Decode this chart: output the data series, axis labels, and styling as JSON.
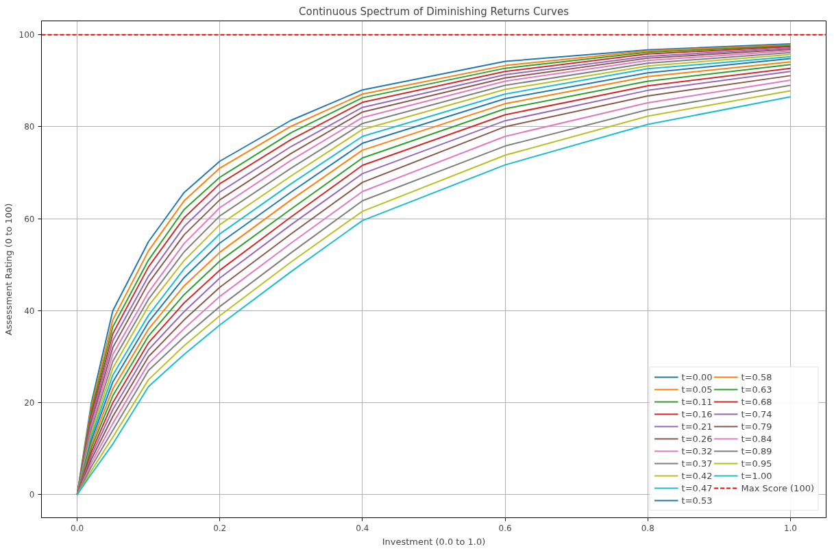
{
  "chart_data": {
    "type": "line",
    "title": "Continuous Spectrum of Diminishing Returns Curves",
    "xlabel": "Investment (0.0 to 1.0)",
    "ylabel": "Assessment Rating (0 to 100)",
    "x": [
      0,
      0.02,
      0.05,
      0.1,
      0.15,
      0.2,
      0.3,
      0.4,
      0.6,
      0.8,
      1.0
    ],
    "series": [
      {
        "name": "t=0.00",
        "color": "#1f77b4",
        "values": [
          0,
          20,
          40,
          55,
          65.7,
          72.5,
          81.4,
          88.0,
          94.2,
          96.7,
          98.0
        ]
      },
      {
        "name": "t=0.05",
        "color": "#ff7f0e",
        "values": [
          0,
          19.2,
          38,
          53,
          63.9,
          71.0,
          80.1,
          87.1,
          93.3,
          96.5,
          97.8
        ]
      },
      {
        "name": "t=0.11",
        "color": "#2ca02c",
        "values": [
          0,
          18.4,
          36.5,
          51,
          62.0,
          69.0,
          78.7,
          86.3,
          92.7,
          96.2,
          97.6
        ]
      },
      {
        "name": "t=0.16",
        "color": "#d62728",
        "values": [
          0,
          17.5,
          35,
          49.5,
          60.2,
          67.6,
          77.2,
          85.3,
          92.0,
          95.8,
          97.4
        ]
      },
      {
        "name": "t=0.21",
        "color": "#9467bd",
        "values": [
          0,
          16.7,
          33.5,
          47.5,
          58.3,
          65.8,
          75.7,
          84.2,
          91.3,
          95.3,
          97.1
        ]
      },
      {
        "name": "t=0.26",
        "color": "#8c564b",
        "values": [
          0,
          15.9,
          32,
          46,
          56.5,
          64.1,
          74.2,
          83.2,
          90.6,
          94.9,
          96.8
        ]
      },
      {
        "name": "t=0.32",
        "color": "#e377c2",
        "values": [
          0,
          15.1,
          30.5,
          44,
          54.6,
          62.4,
          72.7,
          82.0,
          89.9,
          94.4,
          96.5
        ]
      },
      {
        "name": "t=0.37",
        "color": "#7f7f7f",
        "values": [
          0,
          14.3,
          29,
          42.5,
          52.8,
          60.6,
          71.0,
          80.7,
          89.0,
          93.8,
          96.1
        ]
      },
      {
        "name": "t=0.42",
        "color": "#bcbd22",
        "values": [
          0,
          13.4,
          27.5,
          41,
          50.9,
          58.7,
          69.3,
          79.4,
          88.1,
          93.2,
          95.7
        ]
      },
      {
        "name": "t=0.47",
        "color": "#17becf",
        "values": [
          0,
          12.6,
          26,
          39,
          49.1,
          56.7,
          67.6,
          77.9,
          87.1,
          92.6,
          95.2
        ]
      },
      {
        "name": "t=0.53",
        "color": "#1f77b4",
        "values": [
          0,
          11.8,
          24.5,
          37.5,
          47.2,
          54.7,
          65.8,
          76.4,
          86.1,
          91.7,
          94.8
        ]
      },
      {
        "name": "t=0.58",
        "color": "#ff7f0e",
        "values": [
          0,
          11.0,
          23,
          36,
          45.4,
          52.7,
          64.1,
          74.9,
          85.0,
          90.9,
          94.1
        ]
      },
      {
        "name": "t=0.63",
        "color": "#2ca02c",
        "values": [
          0,
          10.2,
          21.5,
          34.5,
          43.5,
          50.8,
          62.1,
          73.2,
          83.9,
          89.9,
          93.5
        ]
      },
      {
        "name": "t=0.68",
        "color": "#d62728",
        "values": [
          0,
          9.3,
          20,
          33,
          41.7,
          48.8,
          60.4,
          71.6,
          82.6,
          88.9,
          92.7
        ]
      },
      {
        "name": "t=0.74",
        "color": "#9467bd",
        "values": [
          0,
          8.5,
          18.5,
          31.5,
          39.8,
          47.1,
          58.7,
          69.8,
          81.3,
          87.9,
          92.0
        ]
      },
      {
        "name": "t=0.79",
        "color": "#8c564b",
        "values": [
          0,
          7.7,
          17,
          30,
          38.0,
          45.1,
          56.7,
          67.9,
          80.0,
          86.7,
          91.1
        ]
      },
      {
        "name": "t=0.84",
        "color": "#e377c2",
        "values": [
          0,
          6.9,
          15.5,
          28.5,
          36.1,
          43.1,
          54.7,
          65.9,
          77.9,
          85.2,
          90.1
        ]
      },
      {
        "name": "t=0.89",
        "color": "#7f7f7f",
        "values": [
          0,
          6.1,
          14,
          27,
          34.3,
          40.9,
          52.6,
          63.9,
          75.8,
          83.7,
          89.0
        ]
      },
      {
        "name": "t=0.95",
        "color": "#bcbd22",
        "values": [
          0,
          5.2,
          12.5,
          25,
          32.4,
          38.9,
          50.6,
          61.6,
          73.8,
          82.3,
          87.8
        ]
      },
      {
        "name": "t=1.00",
        "color": "#17becf",
        "values": [
          0,
          4.5,
          11,
          23.5,
          30.5,
          36.9,
          48.5,
          59.6,
          71.7,
          80.5,
          86.5
        ]
      }
    ],
    "ref_lines": [
      {
        "axis": "y",
        "value": 100,
        "label": "Max Score (100)",
        "color": "#ff0000",
        "line_style": "dashed"
      }
    ],
    "xlim": [
      -0.05,
      1.05
    ],
    "ylim": [
      -5,
      103
    ],
    "xticks": [
      {
        "value": 0,
        "label": "0.0"
      },
      {
        "value": 0.2,
        "label": "0.2"
      },
      {
        "value": 0.4,
        "label": "0.4"
      },
      {
        "value": 0.6,
        "label": "0.6"
      },
      {
        "value": 0.8,
        "label": "0.8"
      },
      {
        "value": 1.0,
        "label": "1.0"
      }
    ],
    "yticks": [
      0,
      20,
      40,
      60,
      80,
      100
    ],
    "grid": true,
    "legend": "bottom right",
    "line_style": "solid"
  }
}
